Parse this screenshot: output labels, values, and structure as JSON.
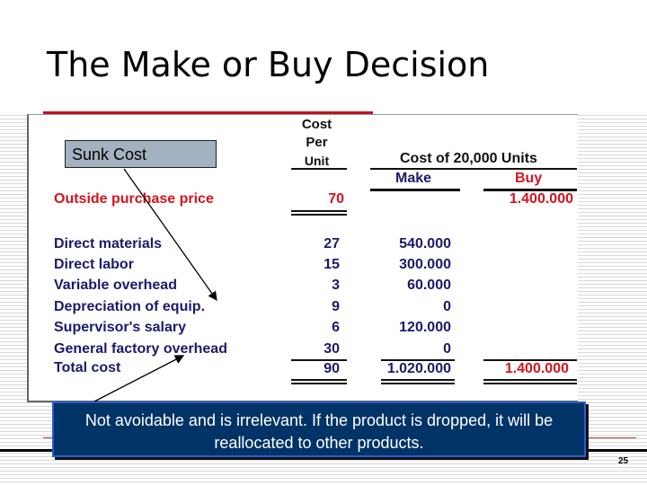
{
  "slide": {
    "title": "The Make or Buy Decision",
    "page_number": "25"
  },
  "table": {
    "header": {
      "per_unit": [
        "Cost",
        "Per",
        "Unit"
      ],
      "group": "Cost of 20,000 Units",
      "make": "Make",
      "buy": "Buy"
    },
    "outside": {
      "label": "Outside purchase price",
      "per_unit": "70",
      "buy": "1.400.000"
    },
    "rows": [
      {
        "label": "Direct materials",
        "per_unit": "27",
        "make": "540.000"
      },
      {
        "label": "Direct labor",
        "per_unit": "15",
        "make": "300.000"
      },
      {
        "label": "Variable overhead",
        "per_unit": "3",
        "make": "60.000"
      },
      {
        "label": "Depreciation of equip.",
        "per_unit": "9",
        "make": "0"
      },
      {
        "label": "Supervisor's salary",
        "per_unit": "6",
        "make": "120.000"
      },
      {
        "label": "General factory overhead",
        "per_unit": "30",
        "make": "0"
      }
    ],
    "total": {
      "label": "Total cost",
      "per_unit": "90",
      "make": "1.020.000",
      "buy": "1.400.000"
    }
  },
  "annotations": {
    "sunk_cost": "Sunk Cost",
    "callout": "Not avoidable and is irrelevant.  If the product is dropped, it will be reallocated to other products."
  },
  "colors": {
    "navy_text": "#1a1a6e",
    "red_text": "#d4141c",
    "callout_bg": "#003366",
    "sunk_bg": "#a3b1c0"
  }
}
